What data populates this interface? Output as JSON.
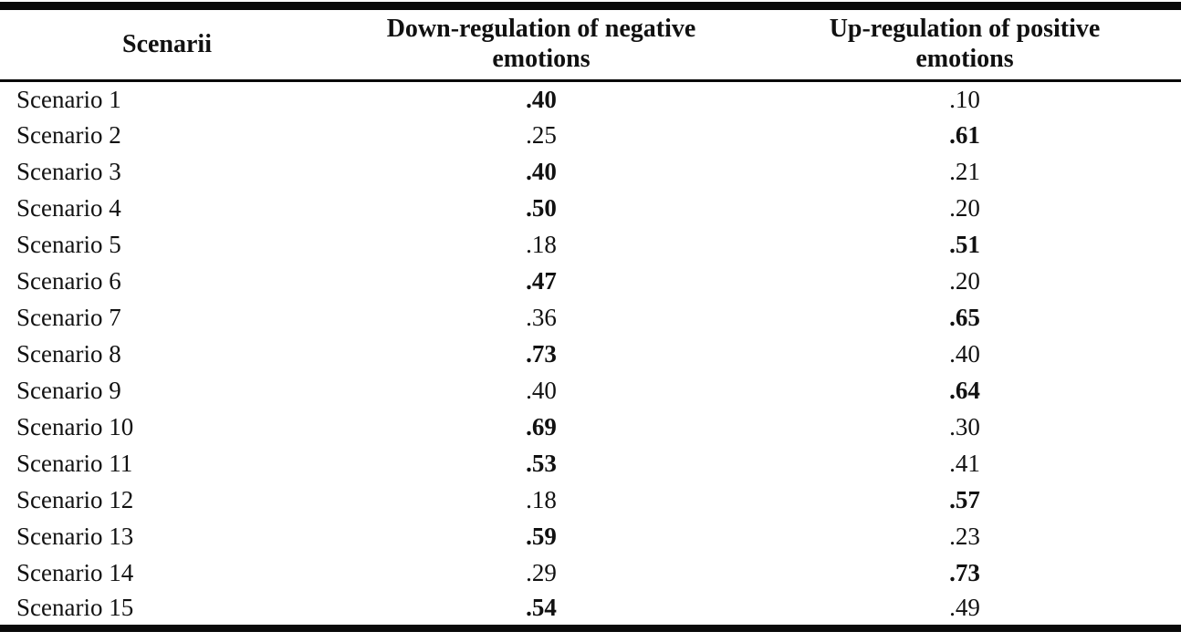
{
  "table": {
    "columns": [
      {
        "label": "Scenarii"
      },
      {
        "label": "Down-regulation of negative emotions"
      },
      {
        "label": "Up-regulation of positive emotions"
      }
    ],
    "rows": [
      {
        "label": "Scenario 1",
        "down": ".40",
        "down_bold": true,
        "up": ".10",
        "up_bold": false
      },
      {
        "label": "Scenario 2",
        "down": ".25",
        "down_bold": false,
        "up": ".61",
        "up_bold": true
      },
      {
        "label": "Scenario 3",
        "down": ".40",
        "down_bold": true,
        "up": ".21",
        "up_bold": false
      },
      {
        "label": "Scenario 4",
        "down": ".50",
        "down_bold": true,
        "up": ".20",
        "up_bold": false
      },
      {
        "label": "Scenario 5",
        "down": ".18",
        "down_bold": false,
        "up": ".51",
        "up_bold": true
      },
      {
        "label": "Scenario 6",
        "down": ".47",
        "down_bold": true,
        "up": ".20",
        "up_bold": false
      },
      {
        "label": "Scenario 7",
        "down": ".36",
        "down_bold": false,
        "up": ".65",
        "up_bold": true
      },
      {
        "label": "Scenario 8",
        "down": ".73",
        "down_bold": true,
        "up": ".40",
        "up_bold": false
      },
      {
        "label": "Scenario 9",
        "down": ".40",
        "down_bold": false,
        "up": ".64",
        "up_bold": true
      },
      {
        "label": "Scenario 10",
        "down": ".69",
        "down_bold": true,
        "up": ".30",
        "up_bold": false
      },
      {
        "label": "Scenario 11",
        "down": ".53",
        "down_bold": true,
        "up": ".41",
        "up_bold": false
      },
      {
        "label": "Scenario 12",
        "down": ".18",
        "down_bold": false,
        "up": ".57",
        "up_bold": true
      },
      {
        "label": "Scenario 13",
        "down": ".59",
        "down_bold": true,
        "up": ".23",
        "up_bold": false
      },
      {
        "label": "Scenario 14",
        "down": ".29",
        "down_bold": false,
        "up": ".73",
        "up_bold": true
      },
      {
        "label": "Scenario 15",
        "down": ".54",
        "down_bold": true,
        "up": ".49",
        "up_bold": false
      }
    ]
  },
  "chart_data": {
    "type": "table",
    "title": "",
    "categories": [
      "Scenario 1",
      "Scenario 2",
      "Scenario 3",
      "Scenario 4",
      "Scenario 5",
      "Scenario 6",
      "Scenario 7",
      "Scenario 8",
      "Scenario 9",
      "Scenario 10",
      "Scenario 11",
      "Scenario 12",
      "Scenario 13",
      "Scenario 14",
      "Scenario 15"
    ],
    "series": [
      {
        "name": "Down-regulation of negative emotions",
        "values": [
          0.4,
          0.25,
          0.4,
          0.5,
          0.18,
          0.47,
          0.36,
          0.73,
          0.4,
          0.69,
          0.53,
          0.18,
          0.59,
          0.29,
          0.54
        ]
      },
      {
        "name": "Up-regulation of positive emotions",
        "values": [
          0.1,
          0.61,
          0.21,
          0.2,
          0.51,
          0.2,
          0.65,
          0.4,
          0.64,
          0.3,
          0.41,
          0.57,
          0.23,
          0.73,
          0.49
        ]
      }
    ],
    "bold_flags": {
      "down": [
        true,
        false,
        true,
        true,
        false,
        true,
        false,
        true,
        false,
        true,
        true,
        false,
        true,
        false,
        true
      ],
      "up": [
        false,
        true,
        false,
        false,
        true,
        false,
        true,
        false,
        true,
        false,
        false,
        true,
        false,
        true,
        false
      ]
    }
  },
  "colors": {
    "text": "#111111",
    "rule": "#0a0a0a",
    "background": "#ffffff"
  }
}
